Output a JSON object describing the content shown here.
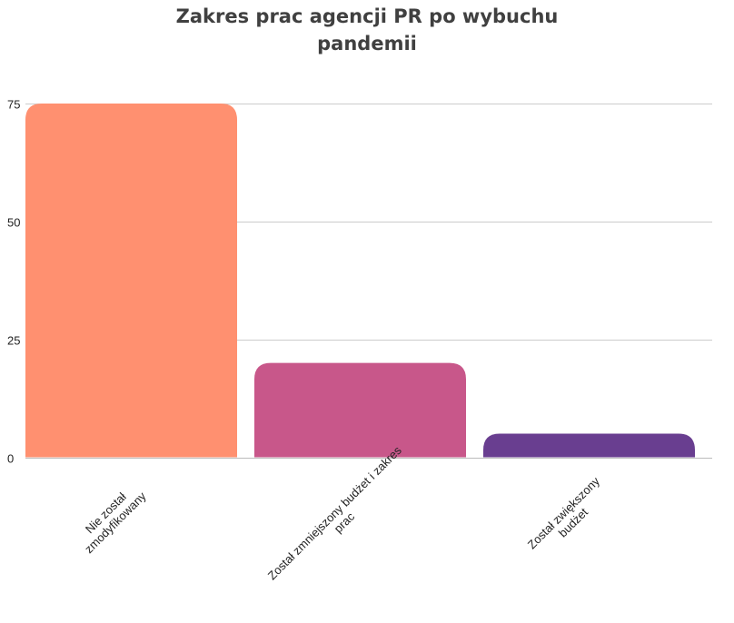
{
  "chart_data": {
    "type": "bar",
    "title_lines": [
      "Zakres prac agencji PR po wybuchu",
      "pandemii"
    ],
    "categories": [
      [
        "Nie został",
        "zmodyfikowany"
      ],
      [
        "Został zmniejszony budżet i zakres",
        "prac"
      ],
      [
        "Został zwiększony",
        "budżet"
      ]
    ],
    "values": [
      75,
      20,
      5
    ],
    "colors": [
      "#FF9070",
      "#C8578A",
      "#693E90"
    ],
    "y_ticks": [
      0,
      25,
      50,
      75
    ],
    "ylim": [
      0,
      75
    ],
    "grid": true,
    "legend": "none"
  }
}
